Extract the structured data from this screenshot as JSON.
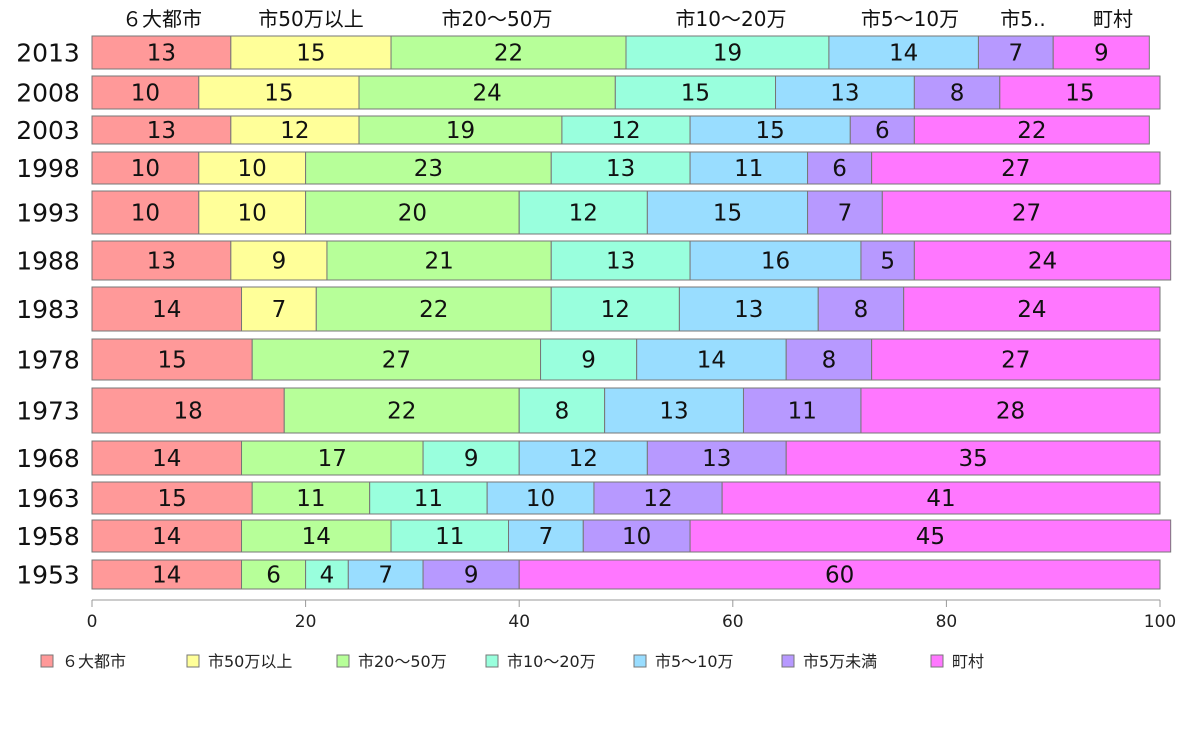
{
  "chart_data": {
    "type": "bar",
    "orientation": "horizontal",
    "stacked": true,
    "title": "",
    "xlabel": "",
    "ylabel": "",
    "xlim": [
      0,
      100
    ],
    "xticks": [
      0,
      20,
      40,
      60,
      80,
      100
    ],
    "grid": false,
    "legend_position": "bottom",
    "categories": [
      "2013",
      "2008",
      "2003",
      "1998",
      "1993",
      "1988",
      "1983",
      "1978",
      "1973",
      "1968",
      "1963",
      "1958",
      "1953"
    ],
    "column_headers": [
      "６大都市",
      "市50万以上",
      "市20～50万",
      "市10～20万",
      "市5～10万",
      "市5..",
      "町村"
    ],
    "series": [
      {
        "name": "６大都市",
        "color": "#ff9999",
        "values": [
          13,
          10,
          13,
          10,
          10,
          13,
          14,
          15,
          18,
          14,
          15,
          14,
          14
        ]
      },
      {
        "name": "市50万以上",
        "color": "#ffff99",
        "values": [
          15,
          15,
          12,
          10,
          10,
          9,
          7,
          0,
          0,
          0,
          0,
          0,
          0
        ]
      },
      {
        "name": "市20～50万",
        "color": "#b7ff99",
        "values": [
          22,
          24,
          19,
          23,
          20,
          21,
          22,
          27,
          22,
          17,
          11,
          14,
          6
        ]
      },
      {
        "name": "市10～20万",
        "color": "#99ffdd",
        "values": [
          19,
          15,
          12,
          13,
          12,
          13,
          12,
          9,
          8,
          9,
          11,
          11,
          4
        ]
      },
      {
        "name": "市5～10万",
        "color": "#99ddff",
        "values": [
          14,
          13,
          15,
          11,
          15,
          16,
          13,
          14,
          13,
          12,
          10,
          7,
          7
        ]
      },
      {
        "name": "市5万未満",
        "color": "#b799ff",
        "values": [
          7,
          8,
          6,
          6,
          7,
          5,
          8,
          8,
          11,
          13,
          12,
          10,
          9
        ]
      },
      {
        "name": "町村",
        "color": "#ff77ff",
        "values": [
          9,
          15,
          22,
          27,
          27,
          24,
          24,
          27,
          28,
          35,
          41,
          45,
          60
        ]
      }
    ]
  }
}
